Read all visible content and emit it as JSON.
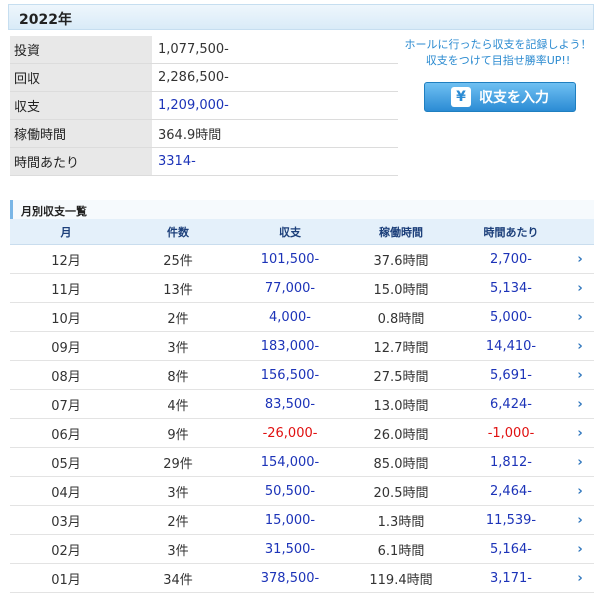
{
  "year_header": "2022年",
  "summary": [
    {
      "label": "投資",
      "value": "1,077,500-",
      "color": "default"
    },
    {
      "label": "回収",
      "value": "2,286,500-",
      "color": "default"
    },
    {
      "label": "収支",
      "value": "1,209,000-",
      "color": "blue"
    },
    {
      "label": "稼働時間",
      "value": "364.9時間",
      "color": "default"
    },
    {
      "label": "時間あたり",
      "value": "3314-",
      "color": "blue"
    }
  ],
  "promo_text": "ホールに行ったら収支を記録しよう！収支をつけて目指せ勝率UP!!",
  "input_button": {
    "icon": "yen-icon",
    "label": "収支を入力"
  },
  "monthly_title": "月別収支一覧",
  "monthly_headers": [
    "月",
    "件数",
    "収支",
    "稼働時間",
    "時間あたり"
  ],
  "monthly_rows": [
    {
      "month": "12月",
      "count": "25件",
      "balance": "101,500-",
      "hours": "37.6時間",
      "per_hour": "2,700-",
      "negative": false
    },
    {
      "month": "11月",
      "count": "13件",
      "balance": "77,000-",
      "hours": "15.0時間",
      "per_hour": "5,134-",
      "negative": false
    },
    {
      "month": "10月",
      "count": "2件",
      "balance": "4,000-",
      "hours": "0.8時間",
      "per_hour": "5,000-",
      "negative": false
    },
    {
      "month": "09月",
      "count": "3件",
      "balance": "183,000-",
      "hours": "12.7時間",
      "per_hour": "14,410-",
      "negative": false
    },
    {
      "month": "08月",
      "count": "8件",
      "balance": "156,500-",
      "hours": "27.5時間",
      "per_hour": "5,691-",
      "negative": false
    },
    {
      "month": "07月",
      "count": "4件",
      "balance": "83,500-",
      "hours": "13.0時間",
      "per_hour": "6,424-",
      "negative": false
    },
    {
      "month": "06月",
      "count": "9件",
      "balance": "-26,000-",
      "hours": "26.0時間",
      "per_hour": "-1,000-",
      "negative": true
    },
    {
      "month": "05月",
      "count": "29件",
      "balance": "154,000-",
      "hours": "85.0時間",
      "per_hour": "1,812-",
      "negative": false
    },
    {
      "month": "04月",
      "count": "3件",
      "balance": "50,500-",
      "hours": "20.5時間",
      "per_hour": "2,464-",
      "negative": false
    },
    {
      "month": "03月",
      "count": "2件",
      "balance": "15,000-",
      "hours": "1.3時間",
      "per_hour": "11,539-",
      "negative": false
    },
    {
      "month": "02月",
      "count": "3件",
      "balance": "31,500-",
      "hours": "6.1時間",
      "per_hour": "5,164-",
      "negative": false
    },
    {
      "month": "01月",
      "count": "34件",
      "balance": "378,500-",
      "hours": "119.4時間",
      "per_hour": "3,171-",
      "negative": false
    }
  ],
  "colors": {
    "blue": "#1c33b8",
    "red": "#e01010",
    "accent": "#2b8bd4"
  },
  "row_icon": "chevron-right-icon"
}
